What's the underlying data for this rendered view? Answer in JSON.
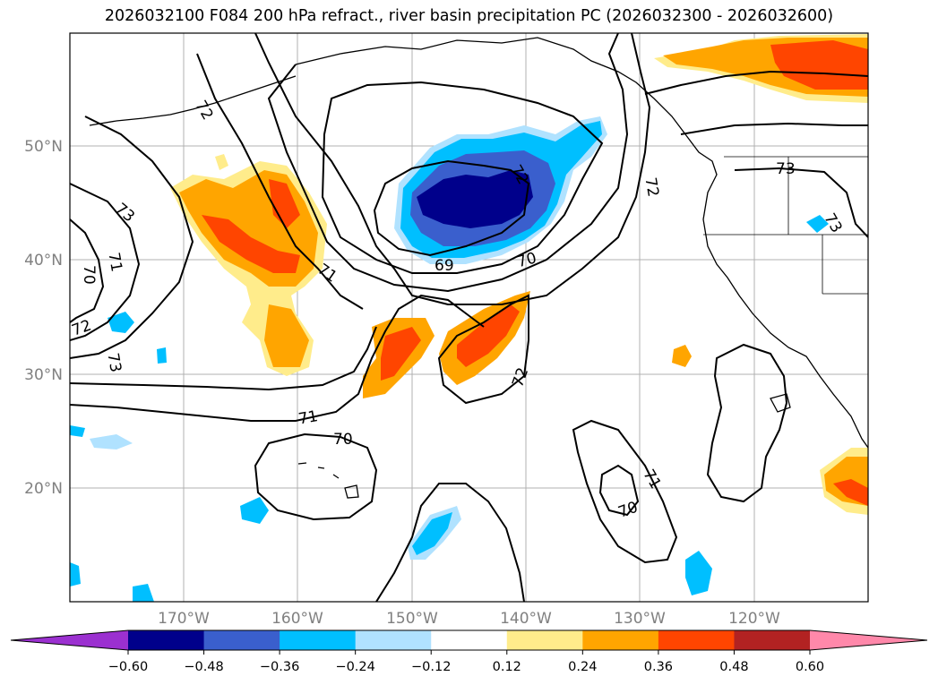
{
  "title": "2026032100 F084 200 hPa refract., river basin precipitation PC (2026032300 - 2026032600)",
  "map": {
    "lat_labels": [
      "50°N",
      "40°N",
      "30°N",
      "20°N"
    ],
    "lon_labels": [
      "170°W",
      "160°W",
      "150°W",
      "140°W",
      "130°W",
      "120°W"
    ],
    "contour_labels": [
      "73",
      "71",
      "70",
      "72",
      "73",
      "71",
      "69",
      "70",
      "72",
      "73",
      "72",
      "73",
      "71",
      "70",
      "72",
      "71",
      "70",
      "72"
    ]
  },
  "colorbar": {
    "colors": [
      "#9b30d0",
      "#00008b",
      "#3a5fcd",
      "#00bfff",
      "#b0e2ff",
      "#ffffff",
      "#ffec8b",
      "#ffa500",
      "#ff4500",
      "#b22222",
      "#ff88aa"
    ],
    "tick_labels": [
      "−0.60",
      "−0.48",
      "−0.36",
      "−0.24",
      "−0.12",
      "0.12",
      "0.24",
      "0.36",
      "0.48",
      "0.60"
    ]
  }
}
